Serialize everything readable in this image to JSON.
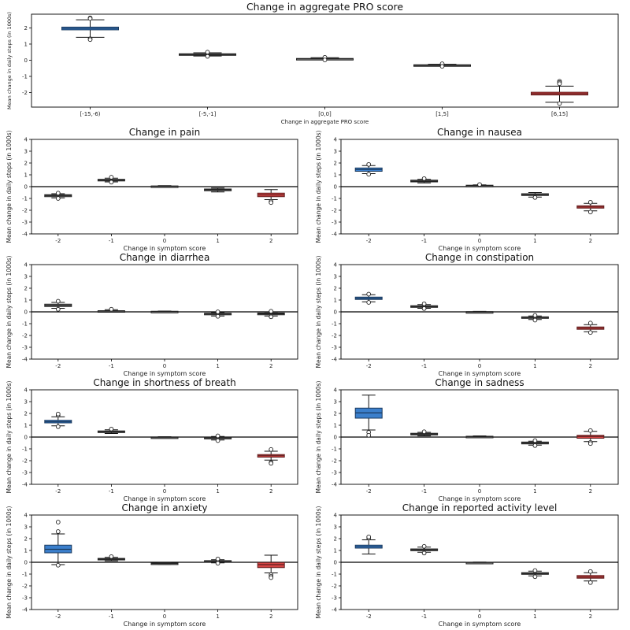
{
  "chart_data": [
    {
      "type": "box",
      "title": "Change in aggregate PRO score",
      "xlabel": "Change in aggregate PRO score",
      "ylabel": "Mean change in daily steps (in 1000s)",
      "categories": [
        "[-15,-6)",
        "[-5,-1]",
        "[0,0]",
        "[1,5]",
        "[6,15]"
      ],
      "ylim": [
        -2.9,
        2.85
      ],
      "yticks": [
        -2,
        -1,
        0,
        1,
        2
      ],
      "zero_line": false,
      "boxes": [
        {
          "color": "#3b7fcc",
          "q1": 1.88,
          "median": 1.97,
          "q3": 2.05,
          "wlo": 1.42,
          "whi": 2.5,
          "outliers": [
            2.62,
            2.58,
            1.33,
            1.28
          ]
        },
        {
          "color": "#9a9a9a",
          "q1": 0.32,
          "median": 0.36,
          "q3": 0.4,
          "wlo": 0.26,
          "whi": 0.46,
          "outliers": [
            0.5,
            0.24
          ]
        },
        {
          "color": "#9a9a9a",
          "q1": 0.07,
          "median": 0.09,
          "q3": 0.11,
          "wlo": 0.03,
          "whi": 0.16,
          "outliers": [
            0.18,
            0.02
          ]
        },
        {
          "color": "#9a9a9a",
          "q1": -0.33,
          "median": -0.31,
          "q3": -0.28,
          "wlo": -0.36,
          "whi": -0.25,
          "outliers": [
            -0.22,
            -0.38
          ]
        },
        {
          "color": "#d64545",
          "q1": -2.15,
          "median": -2.07,
          "q3": -1.98,
          "wlo": -2.6,
          "whi": -1.6,
          "outliers": [
            -1.3,
            -1.38,
            -1.45,
            -2.68
          ]
        }
      ]
    },
    {
      "type": "box",
      "title": "Change in pain",
      "xlabel": "Change in symptom score",
      "ylabel": "Mean change in daily steps (in 1000s)",
      "categories": [
        "-2",
        "-1",
        "0",
        "1",
        "2"
      ],
      "ylim": [
        -4,
        4
      ],
      "yticks": [
        -4,
        -3,
        -2,
        -1,
        0,
        1,
        2,
        3,
        4
      ],
      "zero_line": true,
      "boxes": [
        {
          "color": "#9a9a9a",
          "q1": -0.85,
          "median": -0.75,
          "q3": -0.68,
          "wlo": -0.95,
          "whi": -0.6,
          "outliers": [
            -0.55,
            -1.0
          ]
        },
        {
          "color": "#9a9a9a",
          "q1": 0.48,
          "median": 0.55,
          "q3": 0.62,
          "wlo": 0.4,
          "whi": 0.72,
          "outliers": [
            0.8,
            0.38
          ]
        },
        {
          "color": "#9a9a9a",
          "q1": 0.0,
          "median": 0.03,
          "q3": 0.06,
          "wlo": -0.02,
          "whi": 0.08,
          "outliers": []
        },
        {
          "color": "#9a9a9a",
          "q1": -0.35,
          "median": -0.27,
          "q3": -0.2,
          "wlo": -0.45,
          "whi": -0.12,
          "outliers": []
        },
        {
          "color": "#d64545",
          "q1": -0.85,
          "median": -0.7,
          "q3": -0.55,
          "wlo": -1.1,
          "whi": -0.25,
          "outliers": [
            -1.25,
            -1.35
          ]
        }
      ]
    },
    {
      "type": "box",
      "title": "Change in nausea",
      "xlabel": "Change in symptom score",
      "ylabel": "Mean change in daily steps (in 1000s)",
      "categories": [
        "-2",
        "-1",
        "0",
        "1",
        "2"
      ],
      "ylim": [
        -4,
        4
      ],
      "yticks": [
        -4,
        -3,
        -2,
        -1,
        0,
        1,
        2,
        3,
        4
      ],
      "zero_line": true,
      "boxes": [
        {
          "color": "#3b7fcc",
          "q1": 1.3,
          "median": 1.45,
          "q3": 1.58,
          "wlo": 1.1,
          "whi": 1.78,
          "outliers": [
            1.88,
            1.05
          ]
        },
        {
          "color": "#9a9a9a",
          "q1": 0.4,
          "median": 0.47,
          "q3": 0.55,
          "wlo": 0.32,
          "whi": 0.62,
          "outliers": [
            0.68
          ]
        },
        {
          "color": "#9a9a9a",
          "q1": 0.05,
          "median": 0.08,
          "q3": 0.12,
          "wlo": 0.02,
          "whi": 0.15,
          "outliers": [
            0.18
          ]
        },
        {
          "color": "#9a9a9a",
          "q1": -0.75,
          "median": -0.68,
          "q3": -0.6,
          "wlo": -0.88,
          "whi": -0.5,
          "outliers": [
            -0.92
          ]
        },
        {
          "color": "#d64545",
          "q1": -1.82,
          "median": -1.72,
          "q3": -1.62,
          "wlo": -2.05,
          "whi": -1.42,
          "outliers": [
            -1.32,
            -2.15
          ]
        }
      ]
    },
    {
      "type": "box",
      "title": "Change in diarrhea",
      "xlabel": "Change in symptom score",
      "ylabel": "Mean change in daily steps (in 1000s)",
      "categories": [
        "-2",
        "-1",
        "0",
        "1",
        "2"
      ],
      "ylim": [
        -4,
        4
      ],
      "yticks": [
        -4,
        -3,
        -2,
        -1,
        0,
        1,
        2,
        3,
        4
      ],
      "zero_line": true,
      "boxes": [
        {
          "color": "#9a9a9a",
          "q1": 0.45,
          "median": 0.55,
          "q3": 0.65,
          "wlo": 0.3,
          "whi": 0.8,
          "outliers": [
            0.9,
            0.22
          ]
        },
        {
          "color": "#9a9a9a",
          "q1": 0.02,
          "median": 0.06,
          "q3": 0.1,
          "wlo": -0.02,
          "whi": 0.18,
          "outliers": [
            0.22
          ]
        },
        {
          "color": "#9a9a9a",
          "q1": 0.0,
          "median": 0.02,
          "q3": 0.05,
          "wlo": -0.02,
          "whi": 0.07,
          "outliers": []
        },
        {
          "color": "#9a9a9a",
          "q1": -0.25,
          "median": -0.18,
          "q3": -0.12,
          "wlo": -0.35,
          "whi": -0.05,
          "outliers": [
            -0.38,
            0.0
          ]
        },
        {
          "color": "#9a9a9a",
          "q1": -0.25,
          "median": -0.17,
          "q3": -0.1,
          "wlo": -0.35,
          "whi": -0.02,
          "outliers": [
            0.05,
            -0.42
          ]
        }
      ]
    },
    {
      "type": "box",
      "title": "Change in constipation",
      "xlabel": "Change in symptom score",
      "ylabel": "Mean change in daily steps (in 1000s)",
      "categories": [
        "-2",
        "-1",
        "0",
        "1",
        "2"
      ],
      "ylim": [
        -4,
        4
      ],
      "yticks": [
        -4,
        -3,
        -2,
        -1,
        0,
        1,
        2,
        3,
        4
      ],
      "zero_line": true,
      "boxes": [
        {
          "color": "#3b7fcc",
          "q1": 1.05,
          "median": 1.15,
          "q3": 1.25,
          "wlo": 0.85,
          "whi": 1.45,
          "outliers": [
            1.5,
            0.8
          ]
        },
        {
          "color": "#9a9a9a",
          "q1": 0.38,
          "median": 0.45,
          "q3": 0.52,
          "wlo": 0.3,
          "whi": 0.62,
          "outliers": [
            0.68,
            0.28
          ]
        },
        {
          "color": "#9a9a9a",
          "q1": -0.02,
          "median": 0.0,
          "q3": 0.02,
          "wlo": -0.04,
          "whi": 0.04,
          "outliers": []
        },
        {
          "color": "#9a9a9a",
          "q1": -0.55,
          "median": -0.48,
          "q3": -0.42,
          "wlo": -0.65,
          "whi": -0.35,
          "outliers": [
            -0.3,
            -0.7
          ]
        },
        {
          "color": "#d64545",
          "q1": -1.48,
          "median": -1.38,
          "q3": -1.28,
          "wlo": -1.68,
          "whi": -1.08,
          "outliers": [
            -0.95,
            -1.75
          ]
        }
      ]
    },
    {
      "type": "box",
      "title": "Change in shortness of breath",
      "xlabel": "Change in symptom score",
      "ylabel": "Mean change in daily steps (in 1000s)",
      "categories": [
        "-2",
        "-1",
        "0",
        "1",
        "2"
      ],
      "ylim": [
        -4,
        4
      ],
      "yticks": [
        -4,
        -3,
        -2,
        -1,
        0,
        1,
        2,
        3,
        4
      ],
      "zero_line": true,
      "boxes": [
        {
          "color": "#3b7fcc",
          "q1": 1.2,
          "median": 1.3,
          "q3": 1.42,
          "wlo": 0.95,
          "whi": 1.72,
          "outliers": [
            1.85,
            1.95,
            0.88
          ]
        },
        {
          "color": "#9a9a9a",
          "q1": 0.38,
          "median": 0.45,
          "q3": 0.52,
          "wlo": 0.3,
          "whi": 0.62,
          "outliers": [
            0.68
          ]
        },
        {
          "color": "#9a9a9a",
          "q1": -0.05,
          "median": -0.02,
          "q3": 0.01,
          "wlo": -0.07,
          "whi": 0.03,
          "outliers": []
        },
        {
          "color": "#9a9a9a",
          "q1": -0.15,
          "median": -0.08,
          "q3": -0.02,
          "wlo": -0.25,
          "whi": 0.05,
          "outliers": [
            0.1,
            -0.3
          ]
        },
        {
          "color": "#d64545",
          "q1": -1.7,
          "median": -1.58,
          "q3": -1.48,
          "wlo": -1.95,
          "whi": -1.2,
          "outliers": [
            -1.05,
            -2.15,
            -2.22
          ]
        }
      ]
    },
    {
      "type": "box",
      "title": "Change in sadness",
      "xlabel": "Change in symptom score",
      "ylabel": "Mean change in daily steps (in 1000s)",
      "categories": [
        "-2",
        "-1",
        "0",
        "1",
        "2"
      ],
      "ylim": [
        -4,
        4
      ],
      "yticks": [
        -4,
        -3,
        -2,
        -1,
        0,
        1,
        2,
        3,
        4
      ],
      "zero_line": true,
      "boxes": [
        {
          "color": "#3b7fcc",
          "q1": 1.6,
          "median": 2.05,
          "q3": 2.45,
          "wlo": 0.6,
          "whi": 3.55,
          "outliers": [
            0.4,
            0.15
          ]
        },
        {
          "color": "#9a9a9a",
          "q1": 0.18,
          "median": 0.25,
          "q3": 0.32,
          "wlo": 0.1,
          "whi": 0.4,
          "outliers": [
            0.45
          ]
        },
        {
          "color": "#9a9a9a",
          "q1": 0.0,
          "median": 0.03,
          "q3": 0.07,
          "wlo": -0.02,
          "whi": 0.1,
          "outliers": []
        },
        {
          "color": "#9a9a9a",
          "q1": -0.58,
          "median": -0.5,
          "q3": -0.42,
          "wlo": -0.68,
          "whi": -0.35,
          "outliers": [
            -0.3,
            -0.72
          ]
        },
        {
          "color": "#d64545",
          "q1": -0.1,
          "median": 0.05,
          "q3": 0.15,
          "wlo": -0.38,
          "whi": 0.48,
          "outliers": [
            0.55,
            -0.45,
            -0.55
          ]
        }
      ]
    },
    {
      "type": "box",
      "title": "Change in anxiety",
      "xlabel": "Change in symptom score",
      "ylabel": "Mean change in daily steps (in 1000s)",
      "categories": [
        "-2",
        "-1",
        "0",
        "1",
        "2"
      ],
      "ylim": [
        -4,
        4
      ],
      "yticks": [
        -4,
        -3,
        -2,
        -1,
        0,
        1,
        2,
        3,
        4
      ],
      "zero_line": true,
      "boxes": [
        {
          "color": "#3b7fcc",
          "q1": 0.8,
          "median": 1.1,
          "q3": 1.45,
          "wlo": -0.2,
          "whi": 2.4,
          "outliers": [
            2.6,
            3.4,
            -0.25
          ]
        },
        {
          "color": "#9a9a9a",
          "q1": 0.2,
          "median": 0.27,
          "q3": 0.33,
          "wlo": 0.12,
          "whi": 0.42,
          "outliers": [
            0.48
          ]
        },
        {
          "color": "#9a9a9a",
          "q1": -0.14,
          "median": -0.1,
          "q3": -0.06,
          "wlo": -0.18,
          "whi": -0.02,
          "outliers": []
        },
        {
          "color": "#9a9a9a",
          "q1": 0.02,
          "median": 0.08,
          "q3": 0.14,
          "wlo": -0.05,
          "whi": 0.22,
          "outliers": [
            0.28,
            -0.08
          ]
        },
        {
          "color": "#d64545",
          "q1": -0.45,
          "median": -0.2,
          "q3": -0.02,
          "wlo": -0.9,
          "whi": 0.6,
          "outliers": [
            -1.05,
            -1.2,
            -1.3
          ]
        }
      ]
    },
    {
      "type": "box",
      "title": "Change in reported activity level",
      "xlabel": "Change in symptom score",
      "ylabel": "Mean change in daily steps (in 1000s)",
      "categories": [
        "-2",
        "-1",
        "0",
        "1",
        "2"
      ],
      "ylim": [
        -4,
        4
      ],
      "yticks": [
        -4,
        -3,
        -2,
        -1,
        0,
        1,
        2,
        3,
        4
      ],
      "zero_line": true,
      "boxes": [
        {
          "color": "#3b7fcc",
          "q1": 1.2,
          "median": 1.32,
          "q3": 1.45,
          "wlo": 0.7,
          "whi": 1.9,
          "outliers": [
            2.05,
            2.15
          ]
        },
        {
          "color": "#9a9a9a",
          "q1": 0.98,
          "median": 1.05,
          "q3": 1.13,
          "wlo": 0.85,
          "whi": 1.28,
          "outliers": [
            1.35,
            0.78
          ]
        },
        {
          "color": "#9a9a9a",
          "q1": -0.04,
          "median": -0.02,
          "q3": 0.0,
          "wlo": -0.06,
          "whi": 0.02,
          "outliers": []
        },
        {
          "color": "#9a9a9a",
          "q1": -1.02,
          "median": -0.95,
          "q3": -0.88,
          "wlo": -1.15,
          "whi": -0.75,
          "outliers": [
            -0.7,
            -1.22
          ]
        },
        {
          "color": "#d64545",
          "q1": -1.35,
          "median": -1.25,
          "q3": -1.12,
          "wlo": -1.58,
          "whi": -0.88,
          "outliers": [
            -0.78,
            -1.72
          ]
        }
      ]
    }
  ]
}
